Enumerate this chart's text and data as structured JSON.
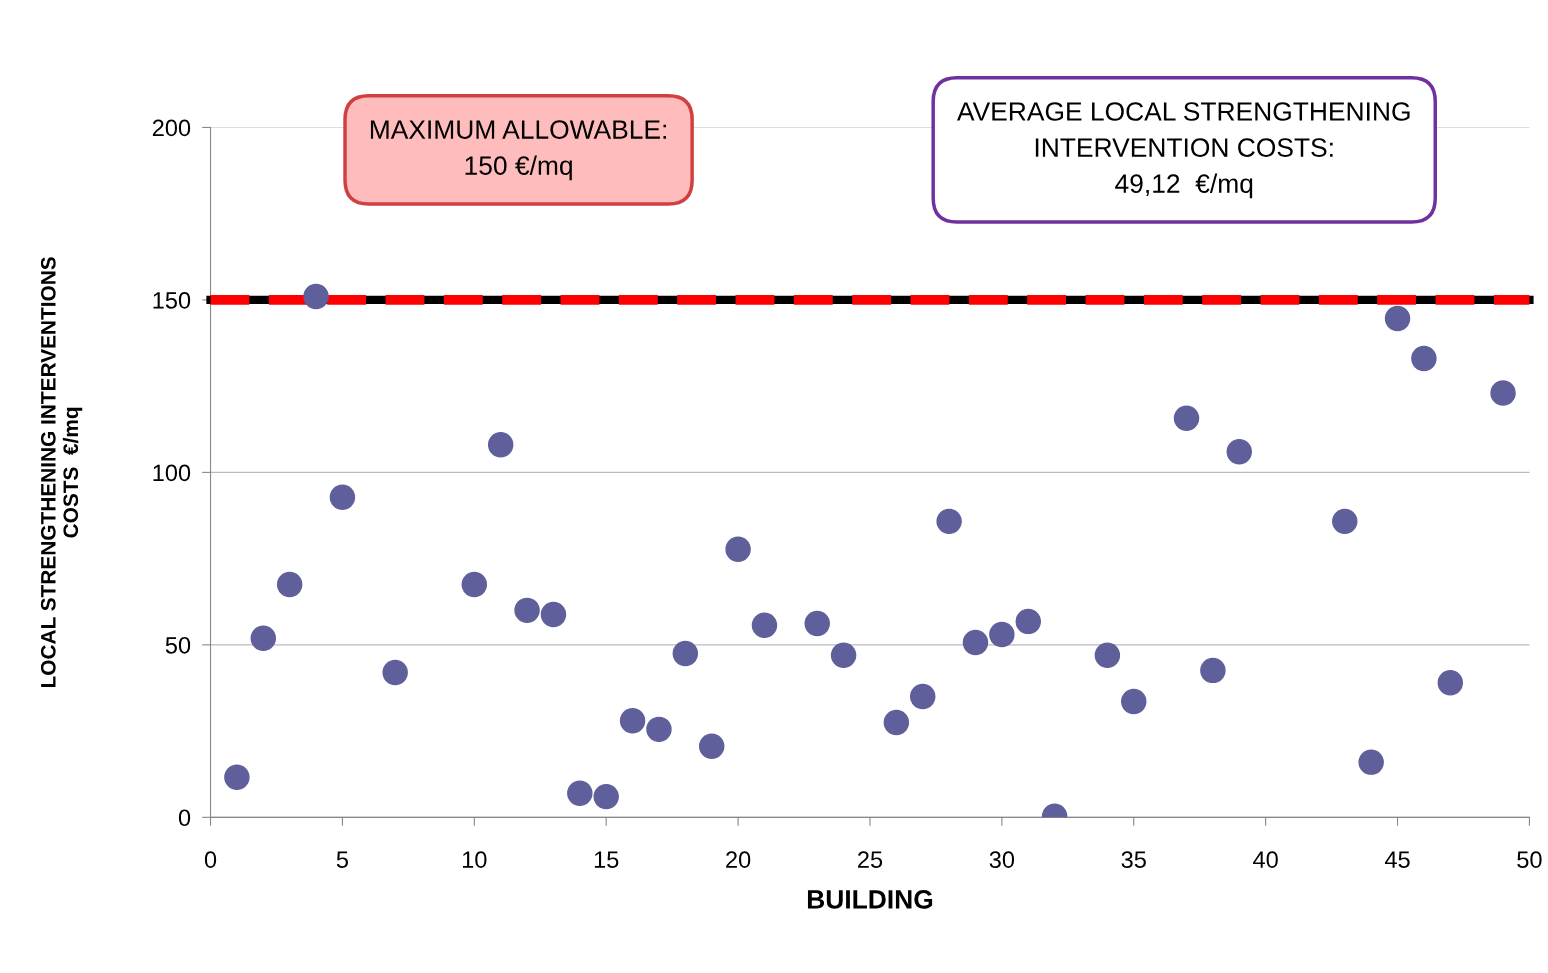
{
  "chart_data": {
    "type": "scatter",
    "xlabel": "BUILDING",
    "ylabel": "LOCAL STRENGTHENING INTERVENTIONS\nCOSTS  €/mq",
    "x": [
      1,
      2,
      3,
      4,
      5,
      7,
      10,
      11,
      12,
      13,
      14,
      15,
      16,
      17,
      18,
      19,
      20,
      21,
      23,
      24,
      26,
      27,
      28,
      29,
      30,
      31,
      32,
      34,
      35,
      37,
      38,
      39,
      43,
      44,
      45,
      46,
      47,
      49
    ],
    "series": [
      {
        "color": "#5f5f9b",
        "values": [
          11.6,
          51.9,
          67.5,
          151,
          92.8,
          42,
          67.5,
          108,
          60,
          58.8,
          7,
          6,
          28,
          25.5,
          47.5,
          20.6,
          77.7,
          55.7,
          56.2,
          47,
          27.5,
          35,
          85.8,
          50.7,
          53,
          56.8,
          0.3,
          47,
          33.6,
          115.7,
          42.6,
          106,
          85.8,
          16,
          144.6,
          133,
          39,
          123
        ]
      }
    ],
    "xlim": [
      0,
      50
    ],
    "xticks": [
      0,
      5,
      10,
      15,
      20,
      25,
      30,
      35,
      40,
      45,
      50
    ],
    "ylim": [
      0,
      200
    ],
    "yticks": [
      0,
      50,
      100,
      150,
      200
    ],
    "grid": "y",
    "marker": "circle",
    "legend": false,
    "ref_lines": [
      {
        "axis": "y",
        "value": 150,
        "color": "#000000",
        "line_style": "solid"
      },
      {
        "axis": "y",
        "value": 150,
        "color": "#ff0000",
        "line_style": "dashed"
      }
    ],
    "annotations": [
      "MAXIMUM ALLOWABLE:\n150 €/mq",
      "AVERAGE LOCAL STRENGTHENING\nINTERVENTION COSTS:\n49,12  €/mq"
    ]
  }
}
